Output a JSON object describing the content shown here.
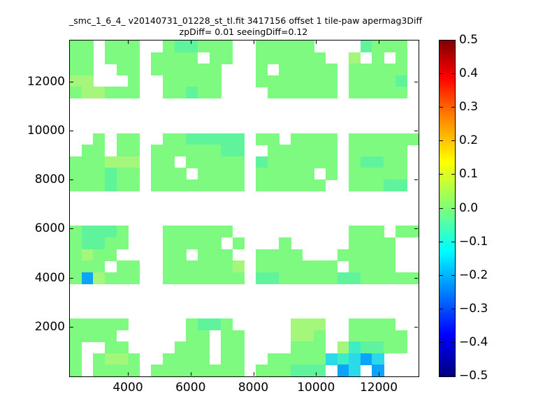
{
  "figure": {
    "title": "_smc_1_6_4_ v20140731_01228_st_tl.fit 3417156 offset 1 tile-paw apermag3Diff",
    "subtitle": "zpDiff= 0.01 seeingDiff=0.12"
  },
  "chart_data": {
    "type": "heatmap",
    "title": "_smc_1_6_4_ v20140731_01228_st_tl.fit 3417156 offset 1 tile-paw apermag3Diff",
    "subtitle": "zpDiff= 0.01 seeingDiff=0.12",
    "xlim": [
      2128,
      13248
    ],
    "ylim": [
      0,
      13710
    ],
    "x_ticks": [
      4000,
      6000,
      8000,
      10000,
      12000
    ],
    "y_ticks": [
      2000,
      4000,
      6000,
      8000,
      10000,
      12000
    ],
    "grid_on": false,
    "colorbar": {
      "min": -0.5,
      "max": 0.5,
      "colormap": "jet",
      "tick_labels": [
        "0.5",
        "0.4",
        "0.3",
        "0.2",
        "0.1",
        "0.0",
        "−0.1",
        "−0.2",
        "−0.3",
        "−0.4",
        "−0.5"
      ],
      "gradient_stops": [
        [
          "#7f0000",
          0
        ],
        [
          "#ff0000",
          11
        ],
        [
          "#ff7b00",
          22
        ],
        [
          "#ffff00",
          36
        ],
        [
          "#7cff79",
          50
        ],
        [
          "#00ffff",
          62.5
        ],
        [
          "#007fff",
          75
        ],
        [
          "#0000ff",
          87.5
        ],
        [
          "#00007f",
          100
        ]
      ]
    },
    "grid": {
      "cols": 30,
      "rows": 29
    },
    "palette": {
      "g": {
        "color": "#7EFA80",
        "value": 0.0
      },
      "y": {
        "color": "#A4F77B",
        "value": 0.04
      },
      "G": {
        "color": "#5FF49C",
        "value": -0.05
      },
      "t": {
        "color": "#3BEEC3",
        "value": -0.12
      },
      "c": {
        "color": "#2BD9E9",
        "value": -0.18
      },
      "b": {
        "color": "#0AA4FA",
        "value": -0.27
      }
    },
    "matrix": [
      "gg.ggg..gGGggg..ggggg....Gggg.",
      "gg.ggg.gggg.gg..gggggg..y.g.g.",
      "gg..gg.gggggg...g.ggggg.ggggg.",
      "yy...g..ggggg...ggggggg.ggggG.",
      "gyyggg..ggGgg....gggggg.ggggg.",
      "..............................",
      "..............................",
      "..............................",
      "..g.gg..ggGGGGG.gg.gggg.gggggg",
      ".gg.gg.ggggggGG..gggggg.ggggg.",
      "gggyyy.gg.ggggg.Ggggggg.gGGgg.",
      "gggGgg.ggg.gggg.ggggg.g.ggggg.",
      "gggGgg.gggggggg.gggggg..gggGG.",
      "..............................",
      "..............................",
      "..............................",
      "gGGGg...gggggg..........ggg.gg",
      "gGGgg...ggggg.g...g.....gggg..",
      "gygg....gg.ggg..gggg...ggggg..",
      "ggg.gg..ggggggy.ggggggg.gggg..",
      "gbyggg..ggggggg.GGgggggGGggggg",
      "..............................",
      "..............................",
      "..............................",
      "ggggg.....gGGg.....yyy..gggg..",
      "gggg......gg.gg....yyg..ggggg.",
      "g..gg....ggg.gg....ggg.ytGGgg.",
      "g.gyyg..gggg.gg..gggggctcbc...",
      "g.gggg.gggggggg.gggGGG.bc.b..."
    ]
  }
}
